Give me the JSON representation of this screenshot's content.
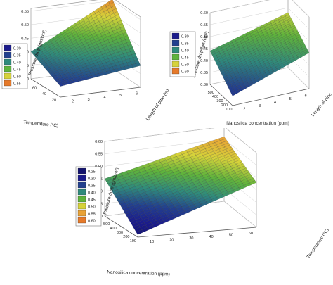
{
  "chart_data": [
    {
      "id": "a",
      "type": "surface3d",
      "zlabel": "Pressure drop (gm/cm²)",
      "xlabel": "Temperature (°C)",
      "ylabel": "Length of pipe (m)",
      "xticks": [
        "60",
        "40",
        "20"
      ],
      "yticks": [
        "2",
        "3",
        "4",
        "5",
        "6"
      ],
      "zticks": [
        "0.30",
        "0.35",
        "0.40",
        "0.45",
        "0.50",
        "0.55"
      ],
      "zlim": [
        0.3,
        0.56
      ],
      "legend": [
        "0.30",
        "0.35",
        "0.40",
        "0.45",
        "0.50",
        "0.55"
      ],
      "legend_colors": [
        "#1b1b8c",
        "#23408e",
        "#2f8a7c",
        "#5fb33c",
        "#d6d23a",
        "#e67a2a"
      ],
      "surface_corners": {
        "back_left": 0.4,
        "back_right": 0.555,
        "front_left": 0.34,
        "front_right": 0.38,
        "center": 0.44
      }
    },
    {
      "id": "b",
      "type": "surface3d",
      "zlabel": "Pressure drop (gm/cm²)",
      "xlabel": "Nanosilica concentration (ppm)",
      "ylabel": "Length of pipe",
      "xticks": [
        "500",
        "400",
        "300",
        "200",
        "100"
      ],
      "yticks": [
        "2",
        "3",
        "4",
        "5",
        "6"
      ],
      "zticks": [
        "0.30",
        "0.35",
        "0.40",
        "0.45",
        "0.50",
        "0.55",
        "0.60"
      ],
      "zlim": [
        0.3,
        0.6
      ],
      "legend": [
        "0.30",
        "0.35",
        "0.40",
        "0.45",
        "0.50",
        "0.60"
      ],
      "legend_colors": [
        "#1b1b8c",
        "#23408e",
        "#2f8a7c",
        "#5fb33c",
        "#d6d23a",
        "#e67a2a"
      ],
      "surface_corners": {
        "back_left": 0.44,
        "back_right": 0.53,
        "front_left": 0.34,
        "front_right": 0.45,
        "center": 0.42
      }
    },
    {
      "id": "c",
      "type": "surface3d",
      "zlabel": "Pressure drop (gm/cm²)",
      "xlabel": "Nanosilica concentration (ppm)",
      "ylabel": "Temperature (°C)",
      "xticks": [
        "500",
        "400",
        "300",
        "200",
        "100"
      ],
      "yticks": [
        "10",
        "20",
        "30",
        "40",
        "50",
        "60"
      ],
      "zticks": [
        "0.30",
        "0.35",
        "0.40",
        "0.45",
        "0.50",
        "0.55",
        "0.60"
      ],
      "zlim": [
        0.3,
        0.6
      ],
      "legend": [
        "0.25",
        "0.30",
        "0.35",
        "0.40",
        "0.45",
        "0.50",
        "0.55",
        "0.60"
      ],
      "legend_colors": [
        "#14146e",
        "#1b1b8c",
        "#23408e",
        "#2f8a7c",
        "#5fb33c",
        "#d6d23a",
        "#e8a236",
        "#e67a2a"
      ],
      "surface_corners": {
        "back_left": 0.45,
        "back_right": 0.56,
        "front_left": 0.31,
        "front_right": 0.48,
        "center": 0.43
      }
    }
  ]
}
